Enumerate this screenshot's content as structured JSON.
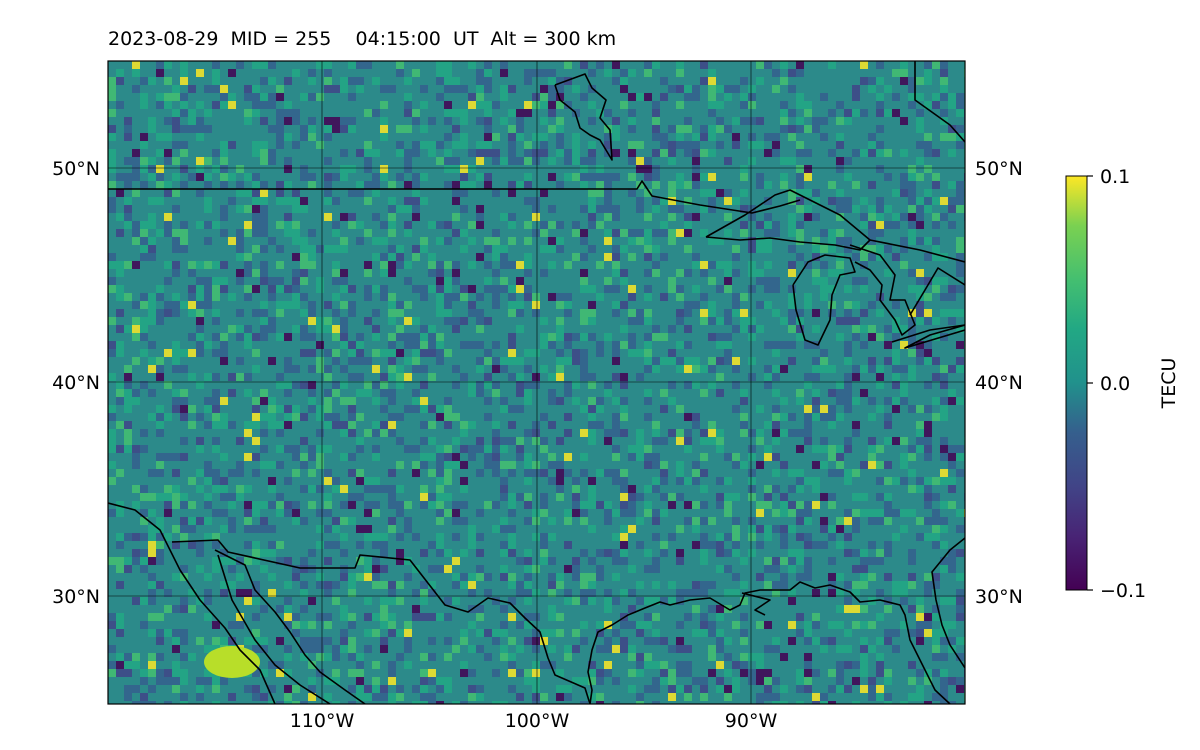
{
  "title": "2023-08-29  MID = 255    04:15:00  UT  Alt = 300 km",
  "map": {
    "lon_range": [
      -120,
      -80
    ],
    "lat_range": [
      25,
      55
    ],
    "lat_gridlines": [
      30,
      40,
      50
    ],
    "lon_gridlines": [
      -110,
      -100,
      -90
    ],
    "lat_labels": [
      "30°N",
      "40°N",
      "50°N"
    ],
    "lon_labels": [
      "110°W",
      "100°W",
      "90°W"
    ],
    "grid": true
  },
  "colorbar": {
    "label": "TECU",
    "colormap": "viridis",
    "vmin": -0.1,
    "vmax": 0.1,
    "tick_values": [
      -0.1,
      0.0,
      0.1
    ],
    "tick_labels": [
      "−0.1",
      "0.0",
      "0.1"
    ]
  },
  "features": {
    "us_canada_border_color": "#000000",
    "coastline_color": "#000000",
    "background_field_color": "#2f8f8a"
  }
}
